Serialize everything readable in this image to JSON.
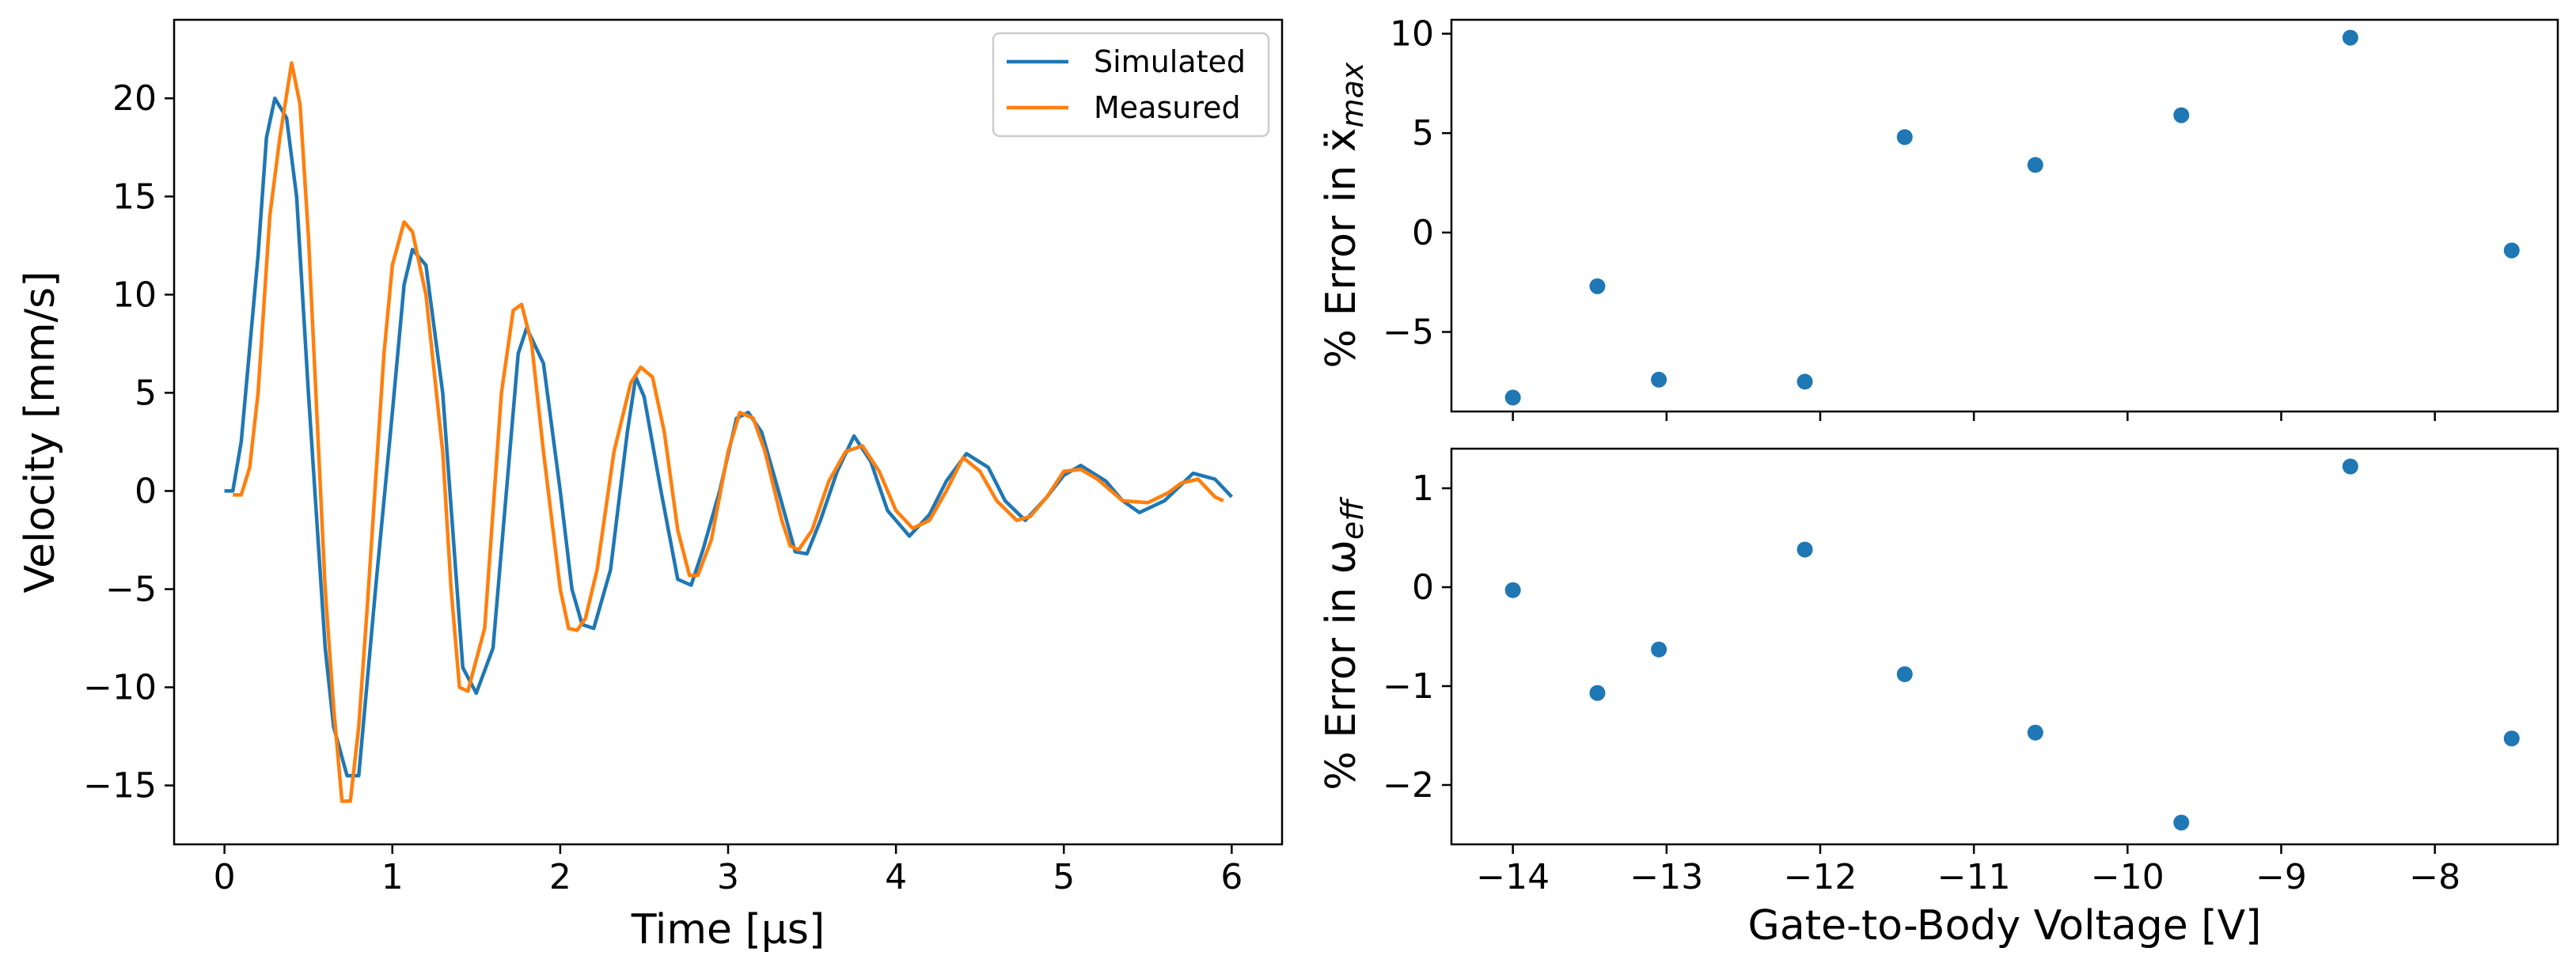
{
  "colors": {
    "simulated": "#1f77b4",
    "measured": "#ff7f0e",
    "points": "#1f77b4"
  },
  "chart_data": [
    {
      "type": "line",
      "xlabel": "Time [μs]",
      "ylabel": "Velocity [mm/s]",
      "xlim": [
        -0.3,
        6.3
      ],
      "ylim": [
        -18,
        24
      ],
      "xticks": [
        0,
        1,
        2,
        3,
        4,
        5,
        6
      ],
      "yticks": [
        -15,
        -10,
        -5,
        0,
        5,
        10,
        15,
        20
      ],
      "xtick_labels": [
        "0",
        "1",
        "2",
        "3",
        "4",
        "5",
        "6"
      ],
      "ytick_labels": [
        "−15",
        "−10",
        "−5",
        "0",
        "5",
        "10",
        "15",
        "20"
      ],
      "legend": {
        "position": "top-right",
        "entries": [
          "Simulated",
          "Measured"
        ]
      },
      "series": [
        {
          "name": "Simulated",
          "x": [
            0,
            0.05,
            0.1,
            0.2,
            0.25,
            0.3,
            0.37,
            0.43,
            0.5,
            0.6,
            0.65,
            0.73,
            0.8,
            0.9,
            1.0,
            1.07,
            1.12,
            1.2,
            1.3,
            1.36,
            1.42,
            1.5,
            1.6,
            1.7,
            1.75,
            1.8,
            1.9,
            2.0,
            2.07,
            2.13,
            2.2,
            2.3,
            2.4,
            2.45,
            2.5,
            2.6,
            2.7,
            2.78,
            2.85,
            2.95,
            3.05,
            3.12,
            3.2,
            3.3,
            3.4,
            3.47,
            3.55,
            3.65,
            3.75,
            3.85,
            3.95,
            4.08,
            4.2,
            4.3,
            4.42,
            4.55,
            4.65,
            4.77,
            4.9,
            5.0,
            5.1,
            5.25,
            5.35,
            5.45,
            5.6,
            5.77,
            5.9,
            6.0
          ],
          "y": [
            0,
            0,
            2.5,
            12,
            18,
            20,
            19,
            15,
            5,
            -8,
            -12,
            -14.5,
            -14.5,
            -5,
            4,
            10.5,
            12.3,
            11.5,
            5,
            -2,
            -9,
            -10.3,
            -8,
            2,
            7,
            8.3,
            6.5,
            0,
            -5,
            -6.8,
            -7,
            -4,
            3,
            5.8,
            4.8,
            0,
            -4.5,
            -4.8,
            -3,
            0,
            3.7,
            4,
            3,
            0,
            -3.1,
            -3.2,
            -1.5,
            1,
            2.8,
            1.5,
            -1,
            -2.3,
            -1.2,
            0.5,
            1.9,
            1.2,
            -0.5,
            -1.5,
            -0.3,
            0.8,
            1.3,
            0.5,
            -0.5,
            -1.1,
            -0.5,
            0.9,
            0.6,
            -0.3
          ]
        },
        {
          "name": "Measured",
          "x": [
            0.05,
            0.1,
            0.15,
            0.2,
            0.27,
            0.33,
            0.4,
            0.45,
            0.5,
            0.6,
            0.65,
            0.7,
            0.75,
            0.8,
            0.85,
            0.95,
            1.0,
            1.07,
            1.12,
            1.2,
            1.3,
            1.35,
            1.4,
            1.45,
            1.55,
            1.65,
            1.72,
            1.77,
            1.83,
            1.9,
            2.0,
            2.05,
            2.1,
            2.15,
            2.22,
            2.32,
            2.42,
            2.48,
            2.55,
            2.62,
            2.7,
            2.77,
            2.82,
            2.9,
            3.0,
            3.07,
            3.15,
            3.22,
            3.32,
            3.37,
            3.42,
            3.5,
            3.6,
            3.7,
            3.8,
            3.9,
            4.0,
            4.1,
            4.2,
            4.3,
            4.4,
            4.5,
            4.6,
            4.72,
            4.8,
            4.9,
            5.0,
            5.1,
            5.2,
            5.35,
            5.5,
            5.62,
            5.7,
            5.8,
            5.9,
            5.95
          ],
          "y": [
            -0.2,
            -0.2,
            1.2,
            5,
            14,
            18,
            21.8,
            19.7,
            13,
            -5,
            -11,
            -15.8,
            -15.8,
            -12,
            -6,
            7,
            11.5,
            13.7,
            13.2,
            10,
            2,
            -5,
            -10,
            -10.2,
            -7,
            5,
            9.2,
            9.5,
            7.5,
            2,
            -5,
            -7,
            -7.1,
            -6.5,
            -4,
            2,
            5.5,
            6.3,
            5.8,
            3,
            -2,
            -4.3,
            -4.3,
            -2.5,
            2,
            4,
            3.7,
            2,
            -1.5,
            -2.8,
            -3,
            -2,
            0.5,
            2,
            2.3,
            1,
            -1,
            -1.9,
            -1.5,
            0,
            1.7,
            1,
            -0.5,
            -1.5,
            -1.3,
            -0.3,
            1,
            1.1,
            0.6,
            -0.5,
            -0.6,
            -0.1,
            0.4,
            0.6,
            -0.3,
            -0.5
          ]
        }
      ]
    },
    {
      "type": "scatter",
      "ylabel": "% Error in ẍ",
      "ylabel_sub": "max",
      "xlim": [
        -14.4,
        -7.2
      ],
      "ylim": [
        -9.0,
        10.7
      ],
      "xticks": [
        -14,
        -13,
        -12,
        -11,
        -10,
        -9,
        -8
      ],
      "yticks": [
        -5,
        0,
        5,
        10
      ],
      "ytick_labels": [
        "−5",
        "0",
        "5",
        "10"
      ],
      "x": [
        -14.0,
        -13.45,
        -13.05,
        -12.1,
        -11.45,
        -10.6,
        -9.65,
        -8.55,
        -7.5
      ],
      "y": [
        -8.3,
        -2.7,
        -7.4,
        -7.5,
        4.8,
        3.4,
        5.9,
        9.8,
        -0.9
      ]
    },
    {
      "type": "scatter",
      "xlabel": "Gate-to-Body Voltage [V]",
      "ylabel": "% Error in ω",
      "ylabel_sub": "eff",
      "xlim": [
        -14.4,
        -7.2
      ],
      "ylim": [
        -2.6,
        1.4
      ],
      "xticks": [
        -14,
        -13,
        -12,
        -11,
        -10,
        -9,
        -8
      ],
      "xtick_labels": [
        "−14",
        "−13",
        "−12",
        "−11",
        "−10",
        "−9",
        "−8"
      ],
      "yticks": [
        -2,
        -1,
        0,
        1
      ],
      "ytick_labels": [
        "−2",
        "−1",
        "0",
        "1"
      ],
      "x": [
        -14.0,
        -13.45,
        -13.05,
        -12.1,
        -11.45,
        -10.6,
        -9.65,
        -8.55,
        -7.5
      ],
      "y": [
        -0.03,
        -1.07,
        -0.63,
        0.38,
        -0.88,
        -1.47,
        -2.38,
        1.22,
        -1.53
      ]
    }
  ]
}
